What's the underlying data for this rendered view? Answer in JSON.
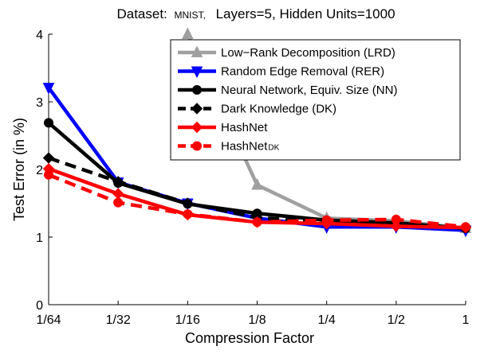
{
  "chart_data": {
    "type": "line",
    "title": {
      "prefix": "Dataset:",
      "dataset": "MNIST,",
      "suffix": "Layers=5,  Hidden Units=1000"
    },
    "xlabel": "Compression Factor",
    "ylabel": "Test Error (in %)",
    "categories": [
      "1/64",
      "1/32",
      "1/16",
      "1/8",
      "1/4",
      "1/2",
      "1"
    ],
    "ylim": [
      0,
      4
    ],
    "yticks": [
      "0",
      "1",
      "2",
      "3",
      "4"
    ],
    "grid": false,
    "legend_position": "top-right",
    "series": [
      {
        "name": "Low−Rank Decomposition (LRD)",
        "name_sub": "",
        "color": "#a0a0a0",
        "marker": "triangle-up",
        "dash": "solid",
        "values": [
          null,
          null,
          4.0,
          1.77,
          1.28,
          1.24,
          1.13
        ]
      },
      {
        "name": "Random Edge Removal (RER)",
        "name_sub": "",
        "color": "#0000ff",
        "marker": "triangle-down",
        "dash": "solid",
        "values": [
          3.21,
          1.81,
          1.5,
          1.28,
          1.15,
          1.15,
          1.1
        ]
      },
      {
        "name": "Neural Network, Equiv. Size (NN)",
        "name_sub": "",
        "color": "#000000",
        "marker": "circle",
        "dash": "solid",
        "values": [
          2.69,
          1.8,
          1.49,
          1.35,
          1.25,
          1.21,
          1.13
        ]
      },
      {
        "name": "Dark Knowledge (DK)",
        "name_sub": "",
        "color": "#000000",
        "marker": "diamond",
        "dash": "dashed",
        "values": [
          2.17,
          1.82,
          1.5,
          1.29,
          1.21,
          1.17,
          1.14
        ]
      },
      {
        "name": "HashNet",
        "name_sub": "",
        "color": "#ff0000",
        "marker": "diamond",
        "dash": "solid",
        "values": [
          2.01,
          1.64,
          1.33,
          1.22,
          1.2,
          1.16,
          1.14
        ]
      },
      {
        "name": "HashNet",
        "name_sub": "DK",
        "color": "#ff0000",
        "marker": "circle",
        "dash": "dashed",
        "values": [
          1.92,
          1.51,
          1.34,
          1.22,
          1.25,
          1.26,
          1.15
        ]
      }
    ]
  }
}
